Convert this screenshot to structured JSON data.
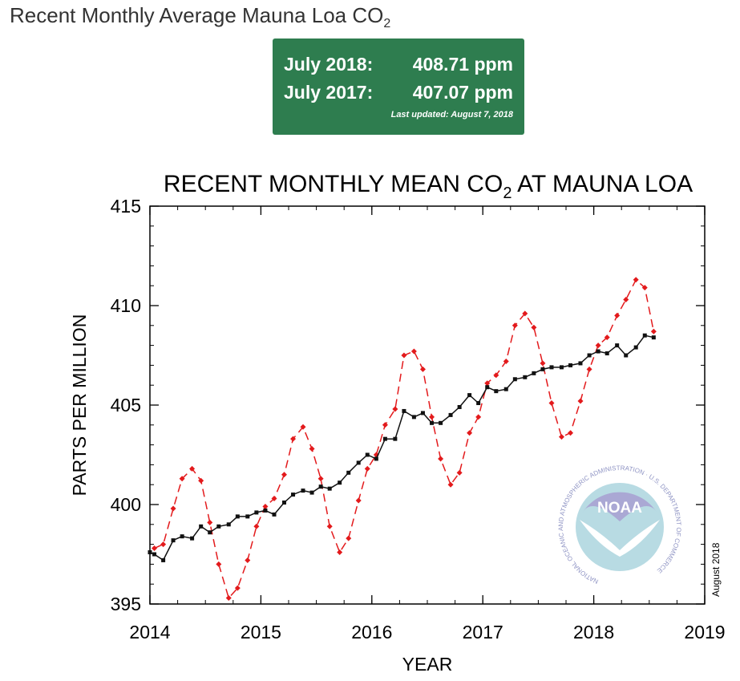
{
  "page": {
    "title": "Recent Monthly Average Mauna Loa CO",
    "title_sub": "2"
  },
  "readings": {
    "row1_label": "July 2018:",
    "row1_value": "408.71 ppm",
    "row2_label": "July 2017:",
    "row2_value": "407.07 ppm",
    "updated": "Last updated: August 7, 2018",
    "background": "#2e7d4f"
  },
  "chart_data": {
    "type": "line",
    "title": "RECENT MONTHLY MEAN CO",
    "title_sub": "2",
    "title_suffix": "AT MAUNA LOA",
    "xlabel": "YEAR",
    "ylabel": "PARTS PER MILLION",
    "xlim": [
      2014,
      2019
    ],
    "ylim": [
      395,
      415
    ],
    "xticks": [
      2014,
      2015,
      2016,
      2017,
      2018,
      2019
    ],
    "yticks": [
      395,
      400,
      405,
      410,
      415
    ],
    "date_stamp": "August 2018",
    "logo_text": "NOAA",
    "logo_ring_text": "NATIONAL OCEANIC AND ATMOSPHERIC ADMINISTRATION · U.S. DEPARTMENT OF COMMERCE",
    "series": [
      {
        "style": "dashed",
        "color": "#e31a1c",
        "marker": "diamond",
        "x": [
          2014.04,
          2014.12,
          2014.21,
          2014.29,
          2014.38,
          2014.46,
          2014.54,
          2014.62,
          2014.71,
          2014.79,
          2014.88,
          2014.96,
          2015.04,
          2015.12,
          2015.21,
          2015.29,
          2015.38,
          2015.46,
          2015.54,
          2015.62,
          2015.71,
          2015.79,
          2015.88,
          2015.96,
          2016.04,
          2016.12,
          2016.21,
          2016.29,
          2016.38,
          2016.46,
          2016.54,
          2016.62,
          2016.71,
          2016.79,
          2016.88,
          2016.96,
          2017.04,
          2017.12,
          2017.21,
          2017.29,
          2017.38,
          2017.46,
          2017.54,
          2017.62,
          2017.71,
          2017.79,
          2017.88,
          2017.96,
          2018.04,
          2018.12,
          2018.21,
          2018.29,
          2018.38,
          2018.46,
          2018.54
        ],
        "y": [
          397.8,
          398.0,
          399.8,
          401.3,
          401.8,
          401.2,
          399.1,
          397.0,
          395.3,
          395.8,
          397.2,
          398.9,
          399.9,
          400.3,
          401.5,
          403.3,
          403.9,
          402.8,
          401.3,
          398.9,
          397.6,
          398.3,
          400.2,
          401.8,
          402.5,
          404.0,
          404.8,
          407.5,
          407.7,
          406.8,
          404.4,
          402.3,
          401.0,
          401.6,
          403.6,
          404.4,
          406.1,
          406.5,
          407.2,
          409.0,
          409.6,
          408.9,
          407.1,
          405.1,
          403.4,
          403.6,
          405.2,
          406.8,
          408.0,
          408.4,
          409.5,
          410.3,
          411.3,
          410.9,
          408.7
        ]
      },
      {
        "style": "solid",
        "color": "#111111",
        "marker": "square",
        "x": [
          2014.0,
          2014.04,
          2014.12,
          2014.21,
          2014.29,
          2014.38,
          2014.46,
          2014.54,
          2014.62,
          2014.71,
          2014.79,
          2014.88,
          2014.96,
          2015.04,
          2015.12,
          2015.21,
          2015.29,
          2015.38,
          2015.46,
          2015.54,
          2015.62,
          2015.71,
          2015.79,
          2015.88,
          2015.96,
          2016.04,
          2016.12,
          2016.21,
          2016.29,
          2016.38,
          2016.46,
          2016.54,
          2016.62,
          2016.71,
          2016.79,
          2016.88,
          2016.96,
          2017.04,
          2017.12,
          2017.21,
          2017.29,
          2017.38,
          2017.46,
          2017.54,
          2017.62,
          2017.71,
          2017.79,
          2017.88,
          2017.96,
          2018.04,
          2018.12,
          2018.21,
          2018.29,
          2018.38,
          2018.46,
          2018.54
        ],
        "y": [
          397.6,
          397.5,
          397.2,
          398.2,
          398.4,
          398.3,
          398.9,
          398.6,
          398.9,
          399.0,
          399.4,
          399.4,
          399.6,
          399.7,
          399.5,
          400.1,
          400.5,
          400.7,
          400.6,
          400.9,
          400.8,
          401.1,
          401.6,
          402.1,
          402.5,
          402.3,
          403.3,
          403.3,
          404.7,
          404.4,
          404.6,
          404.1,
          404.1,
          404.5,
          404.9,
          405.5,
          405.1,
          405.9,
          405.7,
          405.8,
          406.3,
          406.4,
          406.6,
          406.8,
          406.9,
          406.9,
          407.0,
          407.1,
          407.5,
          407.7,
          407.6,
          408.0,
          407.5,
          407.9,
          408.5,
          408.4
        ]
      }
    ]
  }
}
